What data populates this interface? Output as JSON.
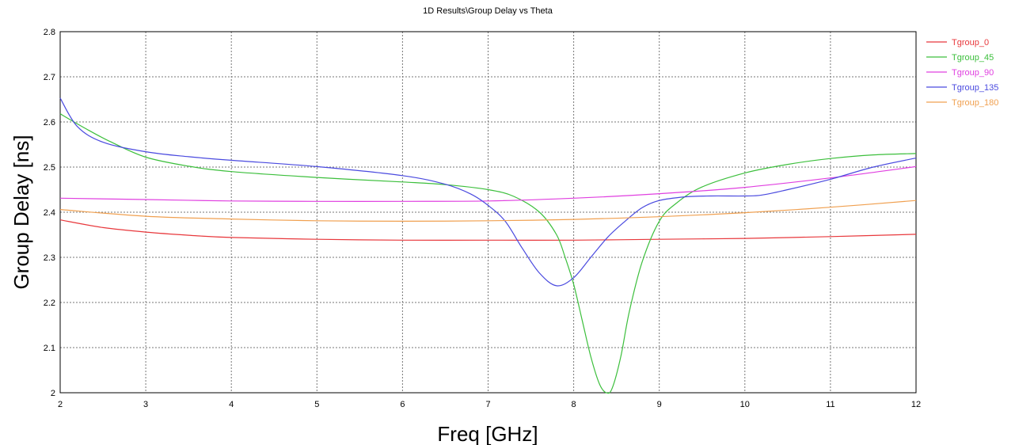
{
  "chart_data": {
    "type": "line",
    "title": "1D Results\\Group Delay vs Theta",
    "xlabel": "Freq [GHz]",
    "ylabel": "Group Delay [ns]",
    "xlim": [
      2,
      12
    ],
    "ylim": [
      2,
      2.8
    ],
    "xticks": [
      "2",
      "3",
      "4",
      "5",
      "6",
      "7",
      "8",
      "9",
      "10",
      "11",
      "12"
    ],
    "yticks": [
      "2",
      "2.1",
      "2.2",
      "2.3",
      "2.4",
      "2.5",
      "2.6",
      "2.7",
      "2.8"
    ],
    "grid": true,
    "legend_position": "right",
    "series": [
      {
        "name": "Tgroup_0",
        "color": "#e8383c",
        "x": [
          2,
          2.5,
          3,
          3.5,
          4,
          5,
          6,
          7,
          8,
          9,
          10,
          11,
          12
        ],
        "y": [
          2.383,
          2.366,
          2.356,
          2.349,
          2.344,
          2.34,
          2.338,
          2.338,
          2.338,
          2.34,
          2.342,
          2.346,
          2.351
        ]
      },
      {
        "name": "Tgroup_45",
        "color": "#3cbf3c",
        "x": [
          2,
          2.3,
          2.6,
          3,
          3.5,
          4,
          5,
          6,
          6.5,
          7,
          7.3,
          7.6,
          7.8,
          7.9,
          8.0,
          8.1,
          8.2,
          8.3,
          8.38,
          8.45,
          8.55,
          8.65,
          8.8,
          9.0,
          9.2,
          9.5,
          10,
          10.5,
          11,
          11.5,
          12
        ],
        "y": [
          2.618,
          2.585,
          2.555,
          2.522,
          2.502,
          2.49,
          2.477,
          2.467,
          2.461,
          2.45,
          2.435,
          2.4,
          2.35,
          2.3,
          2.24,
          2.16,
          2.08,
          2.02,
          2.0,
          2.01,
          2.08,
          2.18,
          2.29,
          2.38,
          2.42,
          2.456,
          2.487,
          2.506,
          2.519,
          2.527,
          2.53
        ]
      },
      {
        "name": "Tgroup_90",
        "color": "#e040e0",
        "x": [
          2,
          3,
          4,
          5,
          6,
          7,
          8,
          9,
          10,
          11,
          12
        ],
        "y": [
          2.431,
          2.428,
          2.425,
          2.424,
          2.424,
          2.425,
          2.431,
          2.441,
          2.455,
          2.476,
          2.501
        ]
      },
      {
        "name": "Tgroup_135",
        "color": "#4a4adf",
        "x": [
          2,
          2.2,
          2.5,
          3,
          3.5,
          4,
          5,
          6,
          6.5,
          6.8,
          7.0,
          7.2,
          7.4,
          7.6,
          7.8,
          8.0,
          8.2,
          8.4,
          8.6,
          8.8,
          9.0,
          9.3,
          9.6,
          10.0,
          10.2,
          10.5,
          11,
          11.5,
          12
        ],
        "y": [
          2.653,
          2.59,
          2.555,
          2.534,
          2.523,
          2.515,
          2.501,
          2.481,
          2.462,
          2.44,
          2.415,
          2.38,
          2.32,
          2.265,
          2.237,
          2.255,
          2.3,
          2.345,
          2.38,
          2.41,
          2.426,
          2.434,
          2.436,
          2.436,
          2.438,
          2.45,
          2.473,
          2.5,
          2.52
        ]
      },
      {
        "name": "Tgroup_180",
        "color": "#f0a050",
        "x": [
          2,
          3,
          4,
          5,
          6,
          7,
          8,
          9,
          10,
          11,
          12
        ],
        "y": [
          2.406,
          2.391,
          2.385,
          2.381,
          2.38,
          2.381,
          2.384,
          2.39,
          2.399,
          2.411,
          2.426
        ]
      }
    ]
  }
}
